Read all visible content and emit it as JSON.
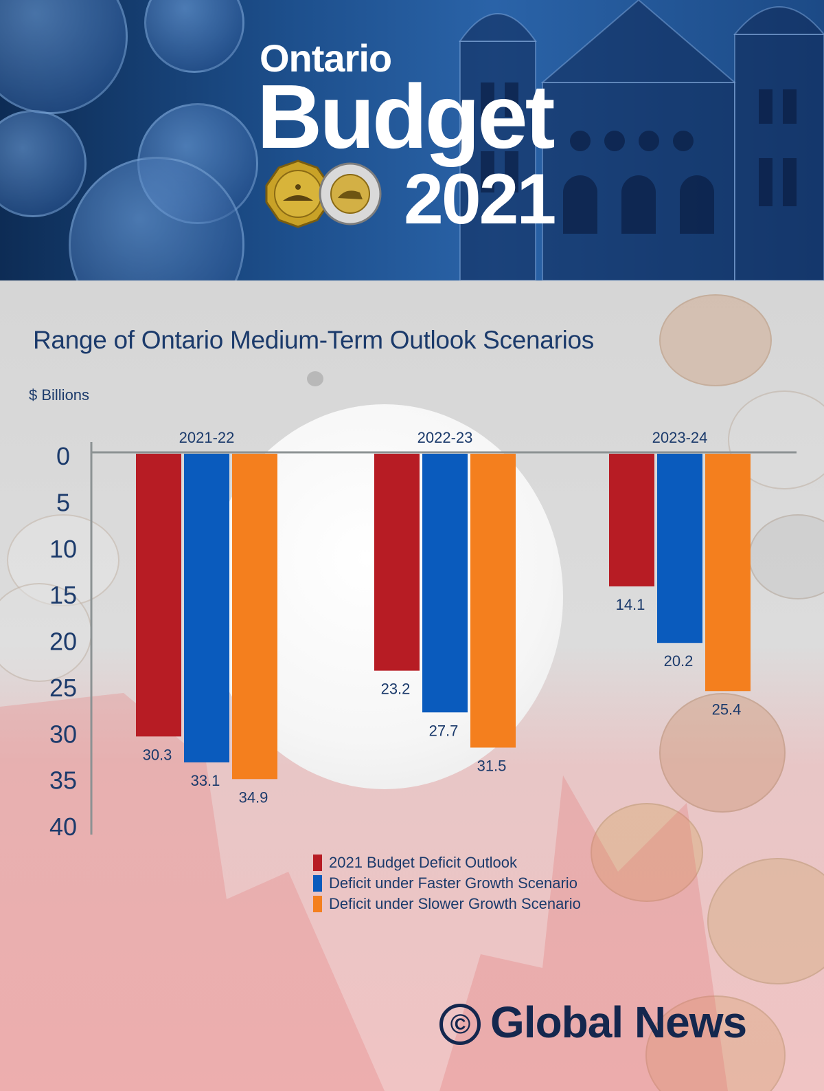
{
  "header": {
    "line1": "Ontario",
    "line2": "Budget",
    "line3": "2021"
  },
  "colors": {
    "red": "#b71c24",
    "blue": "#0a5bbd",
    "orange": "#f47f1e",
    "title": "#1b3a6b",
    "axis": "#8c9293"
  },
  "chart_data": {
    "type": "bar",
    "title": "Range of Ontario Medium-Term Outlook Scenarios",
    "ylabel": "$ Billions",
    "xlabel": "",
    "orientation": "inverted-y",
    "ylim": [
      0,
      40
    ],
    "yticks": [
      0,
      5,
      10,
      15,
      20,
      25,
      30,
      35,
      40
    ],
    "categories": [
      "2021-22",
      "2022-23",
      "2023-24"
    ],
    "series": [
      {
        "name": "2021 Budget Deficit Outlook",
        "color": "#b71c24",
        "values": [
          30.3,
          23.2,
          14.1
        ],
        "labels": [
          "30.3",
          "23.2",
          "14.1"
        ]
      },
      {
        "name": "Deficit under Faster Growth Scenario",
        "color": "#0a5bbd",
        "values": [
          33.1,
          27.7,
          20.2
        ],
        "labels": [
          "33.1",
          "27.7",
          "20.2"
        ]
      },
      {
        "name": "Deficit under Slower Growth Scenario",
        "color": "#f47f1e",
        "values": [
          34.9,
          31.5,
          25.4
        ],
        "labels": [
          "34.9",
          "31.5",
          "25.4"
        ]
      }
    ],
    "legend_position": "bottom"
  },
  "footer": {
    "copyright_symbol": "©",
    "credit": "Global News"
  }
}
